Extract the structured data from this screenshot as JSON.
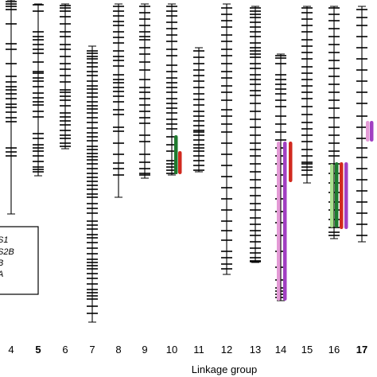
{
  "chart_data": {
    "type": "linkage_map",
    "xlabel": "Linkage group",
    "groups": [
      {
        "label": "4",
        "bold": false,
        "top": 0,
        "bottom": 269,
        "markers": [
          2,
          5,
          8,
          12,
          30,
          55,
          62,
          80,
          96,
          103,
          109,
          113,
          118,
          124,
          131,
          135,
          141,
          148,
          153,
          186,
          191,
          196
        ]
      },
      {
        "label": "5",
        "bold": true,
        "top": 5,
        "bottom": 221,
        "markers": [
          6,
          14,
          40,
          46,
          50,
          56,
          62,
          67,
          78,
          90,
          92,
          98,
          102,
          109,
          117,
          123,
          128,
          132,
          140,
          147,
          168,
          174,
          182,
          186,
          190,
          196,
          203,
          210,
          213,
          216
        ]
      },
      {
        "label": "6",
        "bold": false,
        "top": 5,
        "bottom": 187,
        "markers": [
          7,
          10,
          14,
          21,
          30,
          40,
          46,
          56,
          62,
          71,
          80,
          87,
          95,
          103,
          113,
          116,
          121,
          126,
          133,
          142,
          147,
          152,
          157,
          164,
          170,
          174,
          180,
          184
        ]
      },
      {
        "label": "7",
        "bold": false,
        "top": 58,
        "bottom": 405,
        "markers": [
          64,
          67,
          71,
          74,
          79,
          84,
          90,
          95,
          102,
          108,
          112,
          117,
          122,
          128,
          133,
          137,
          142,
          148,
          154,
          161,
          167,
          172,
          177,
          184,
          188,
          193,
          197,
          201,
          206,
          212,
          218,
          223,
          228,
          233,
          238,
          244,
          248,
          256,
          262,
          268,
          278,
          283,
          288,
          295,
          299,
          305,
          312,
          319,
          326,
          330,
          334,
          338,
          344,
          350,
          357,
          364,
          368,
          372,
          376,
          385,
          394
        ]
      },
      {
        "label": "8",
        "bold": false,
        "top": 5,
        "bottom": 248,
        "markers": [
          8,
          14,
          20,
          27,
          32,
          40,
          47,
          54,
          64,
          71,
          76,
          83,
          94,
          100,
          104,
          110,
          115,
          121,
          128,
          138,
          144,
          160,
          165,
          180,
          194,
          205,
          212,
          220
        ]
      },
      {
        "label": "9",
        "bold": false,
        "top": 5,
        "bottom": 224,
        "markers": [
          8,
          16,
          24,
          32,
          40,
          46,
          50,
          60,
          68,
          78,
          88,
          100,
          110,
          116,
          124,
          132,
          140,
          148,
          155,
          170,
          178,
          194,
          204,
          212,
          218,
          220
        ]
      },
      {
        "label": "10",
        "bold": false,
        "top": 5,
        "bottom": 220,
        "markers": [
          8,
          14,
          20,
          28,
          36,
          44,
          52,
          62,
          70,
          82,
          90,
          98,
          104,
          110,
          116,
          124,
          130,
          136,
          142,
          150,
          156,
          162,
          172,
          182,
          190,
          202,
          206,
          210,
          214,
          218
        ]
      },
      {
        "label": "11",
        "bold": false,
        "top": 60,
        "bottom": 216,
        "markers": [
          64,
          72,
          80,
          88,
          95,
          102,
          110,
          118,
          125,
          132,
          140,
          146,
          152,
          158,
          164,
          166,
          170,
          176,
          182,
          186,
          190,
          196,
          202,
          208,
          214
        ]
      },
      {
        "label": "12",
        "bold": false,
        "top": 5,
        "bottom": 345,
        "markers": [
          10,
          18,
          26,
          34,
          44,
          52,
          62,
          70,
          80,
          90,
          98,
          108,
          116,
          126,
          138,
          146,
          156,
          166,
          180,
          194,
          208,
          222,
          236,
          250,
          264,
          278,
          290,
          302,
          316,
          324,
          332,
          338
        ]
      },
      {
        "label": "13",
        "bold": false,
        "top": 8,
        "bottom": 330,
        "markers": [
          10,
          14,
          18,
          22,
          28,
          34,
          40,
          46,
          54,
          60,
          64,
          68,
          72,
          80,
          86,
          94,
          100,
          106,
          114,
          120,
          130,
          140,
          150,
          160,
          170,
          180,
          188,
          196,
          206,
          216,
          226,
          236,
          246,
          256,
          264,
          274,
          282,
          290,
          296,
          304,
          312,
          318,
          324,
          328,
          329
        ]
      },
      {
        "label": "14",
        "bold": false,
        "top": 68,
        "bottom": 378,
        "markers": [
          70,
          73,
          80,
          94,
          100,
          106,
          112,
          118,
          126,
          134,
          146,
          156,
          166,
          176,
          186,
          196,
          206,
          220,
          234,
          250,
          266,
          280,
          296,
          316,
          336,
          352,
          362,
          366,
          370,
          374
        ]
      },
      {
        "label": "15",
        "bold": false,
        "top": 8,
        "bottom": 230,
        "markers": [
          10,
          16,
          24,
          32,
          40,
          50,
          58,
          66,
          74,
          84,
          92,
          100,
          108,
          116,
          124,
          134,
          144,
          154,
          162,
          170,
          178,
          188,
          196,
          204,
          206,
          210,
          214,
          220
        ]
      },
      {
        "label": "16",
        "bold": false,
        "top": 8,
        "bottom": 300,
        "markers": [
          10,
          18,
          26,
          36,
          46,
          56,
          66,
          76,
          86,
          96,
          106,
          116,
          126,
          136,
          148,
          160,
          170,
          180,
          190,
          196,
          206,
          218,
          230,
          242,
          254,
          264,
          276,
          286,
          292,
          296
        ]
      },
      {
        "label": "17",
        "bold": true,
        "top": 8,
        "bottom": 304,
        "markers": [
          12,
          22,
          32,
          46,
          60,
          74,
          88,
          102,
          116,
          130,
          146,
          160,
          174,
          186,
          198,
          212,
          226,
          240,
          254,
          268,
          282,
          296
        ]
      }
    ],
    "qtl_bars": [
      {
        "group": "10",
        "color": "#1e7a2e",
        "top": 170,
        "bottom": 219
      },
      {
        "group": "10",
        "color": "#d12a1f",
        "top": 190,
        "bottom": 219
      },
      {
        "group": "14",
        "color": "#e49ad6",
        "top": 178,
        "bottom": 378
      },
      {
        "group": "14",
        "color": "#a13fc2",
        "top": 178,
        "bottom": 378
      },
      {
        "group": "14",
        "color": "#d12a1f",
        "top": 178,
        "bottom": 229
      },
      {
        "group": "16",
        "color": "#a9e08f",
        "top": 206,
        "bottom": 286
      },
      {
        "group": "16",
        "color": "#1e7a2e",
        "top": 204,
        "bottom": 286
      },
      {
        "group": "16",
        "color": "#d12a1f",
        "top": 204,
        "bottom": 288
      },
      {
        "group": "16",
        "color": "#a13fc2",
        "top": 204,
        "bottom": 288
      },
      {
        "group": "17",
        "color": "#e49ad6",
        "top": 152,
        "bottom": 178
      },
      {
        "group": "17",
        "color": "#a13fc2",
        "top": 152,
        "bottom": 178
      }
    ],
    "legend": {
      "entries": [
        "S1",
        "S2B",
        "B",
        "A"
      ]
    }
  },
  "colors": {
    "line": "#000000",
    "green_dark": "#1e7a2e",
    "green_light": "#a9e08f",
    "red": "#d12a1f",
    "pink": "#e49ad6",
    "purple": "#a13fc2"
  }
}
